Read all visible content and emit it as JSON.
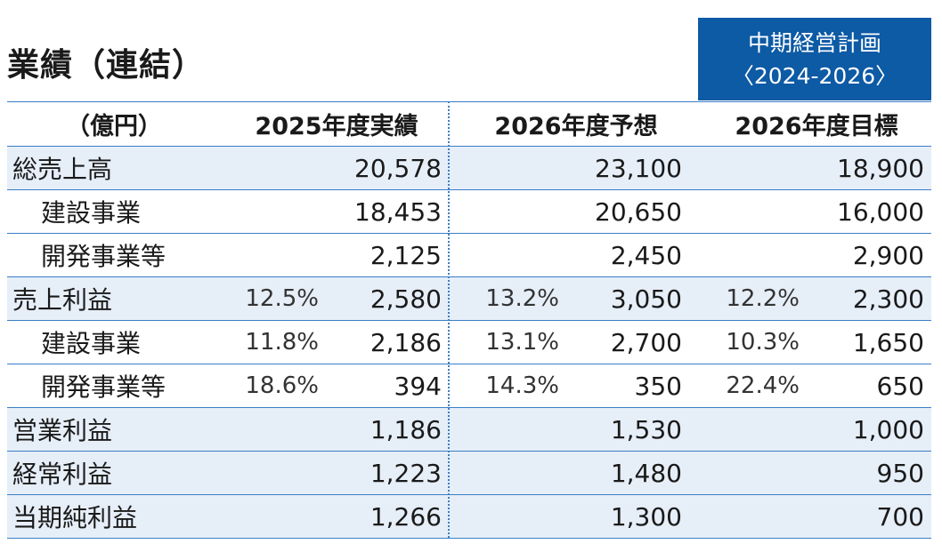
{
  "title": "業績（連結）",
  "plan_badge": {
    "line1": "中期経営計画",
    "line2": "〈2024-2026〉"
  },
  "colors": {
    "badge_bg": "#0d5aa5",
    "row_shade": "#e6eef8",
    "rule": "#3a7fc7"
  },
  "header": {
    "unit": "（億円）",
    "col1": "2025年度実績",
    "col2": "2026年度予想",
    "col3": "2026年度目標"
  },
  "rows": [
    {
      "label": "総売上高",
      "pct1": "",
      "val1": "20,578",
      "pct2": "",
      "val2": "23,100",
      "pct3": "",
      "val3": "18,900"
    },
    {
      "label": "建設事業",
      "pct1": "",
      "val1": "18,453",
      "pct2": "",
      "val2": "20,650",
      "pct3": "",
      "val3": "16,000"
    },
    {
      "label": "開発事業等",
      "pct1": "",
      "val1": "2,125",
      "pct2": "",
      "val2": "2,450",
      "pct3": "",
      "val3": "2,900"
    },
    {
      "label": "売上利益",
      "pct1": "12.5%",
      "val1": "2,580",
      "pct2": "13.2%",
      "val2": "3,050",
      "pct3": "12.2%",
      "val3": "2,300"
    },
    {
      "label": "建設事業",
      "pct1": "11.8%",
      "val1": "2,186",
      "pct2": "13.1%",
      "val2": "2,700",
      "pct3": "10.3%",
      "val3": "1,650"
    },
    {
      "label": "開発事業等",
      "pct1": "18.6%",
      "val1": "394",
      "pct2": "14.3%",
      "val2": "350",
      "pct3": "22.4%",
      "val3": "650"
    },
    {
      "label": "営業利益",
      "pct1": "",
      "val1": "1,186",
      "pct2": "",
      "val2": "1,530",
      "pct3": "",
      "val3": "1,000"
    },
    {
      "label": "経常利益",
      "pct1": "",
      "val1": "1,223",
      "pct2": "",
      "val2": "1,480",
      "pct3": "",
      "val3": "950"
    },
    {
      "label": "当期純利益",
      "pct1": "",
      "val1": "1,266",
      "pct2": "",
      "val2": "1,300",
      "pct3": "",
      "val3": "700"
    }
  ]
}
